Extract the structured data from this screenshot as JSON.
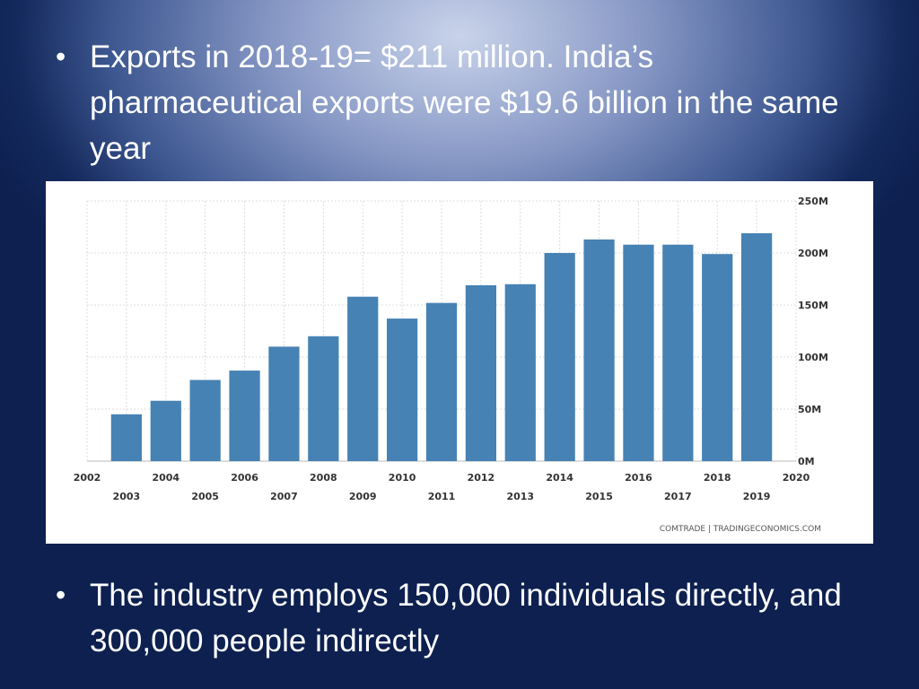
{
  "slide": {
    "bullets": [
      {
        "marker": "•",
        "text": "Exports in 2018-19= $211 million. India’s pharmaceutical exports were $19.6 billion in the same year"
      },
      {
        "marker": "•",
        "text": "The industry employs 150,000 individuals directly, and 300,000 people indirectly"
      }
    ]
  },
  "chart_data": {
    "type": "bar",
    "categories": [
      "2003",
      "2004",
      "2005",
      "2006",
      "2007",
      "2008",
      "2009",
      "2010",
      "2011",
      "2012",
      "2013",
      "2014",
      "2015",
      "2016",
      "2017",
      "2018",
      "2019"
    ],
    "values": [
      45,
      58,
      78,
      87,
      110,
      120,
      158,
      137,
      152,
      169,
      170,
      200,
      213,
      208,
      208,
      199,
      219
    ],
    "x_ticks_top": [
      "2002",
      "2004",
      "2006",
      "2008",
      "2010",
      "2012",
      "2014",
      "2016",
      "2018",
      "2020"
    ],
    "x_ticks_bottom": [
      "2003",
      "2005",
      "2007",
      "2009",
      "2011",
      "2013",
      "2015",
      "2017",
      "2019"
    ],
    "y_ticks": [
      "0M",
      "50M",
      "100M",
      "150M",
      "200M",
      "250M"
    ],
    "ylim": [
      0,
      250
    ],
    "y_axis_position": "right",
    "grid": true,
    "bar_color": "#4682b4",
    "source": "COMTRADE | TRADINGECONOMICS.COM"
  }
}
